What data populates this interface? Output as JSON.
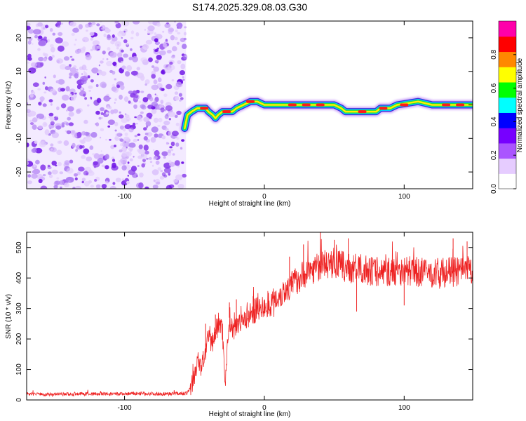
{
  "figure_title": "S174.2025.329.08.03.G30",
  "chart_data": [
    {
      "type": "heatmap",
      "name": "spectrogram",
      "xlabel": "Height of straight line (km)",
      "ylabel": "Frequency (Hz)",
      "xlim": [
        -170,
        149
      ],
      "ylim": [
        -25,
        25
      ],
      "xticks": [
        -100,
        0,
        100
      ],
      "yticks": [
        -20,
        -10,
        0,
        10,
        20
      ],
      "noise_region_x": [
        -170,
        -56
      ],
      "track": [
        {
          "x": -57,
          "y": -7
        },
        {
          "x": -55,
          "y": -3
        },
        {
          "x": -52,
          "y": -2
        },
        {
          "x": -48,
          "y": -1
        },
        {
          "x": -45,
          "y": -1
        },
        {
          "x": -42,
          "y": -1
        },
        {
          "x": -40,
          "y": -2
        },
        {
          "x": -37,
          "y": -3
        },
        {
          "x": -35,
          "y": -4
        },
        {
          "x": -33,
          "y": -3
        },
        {
          "x": -30,
          "y": -2
        },
        {
          "x": -27,
          "y": -2
        },
        {
          "x": -23,
          "y": -2
        },
        {
          "x": -20,
          "y": -1
        },
        {
          "x": -15,
          "y": 0
        },
        {
          "x": -10,
          "y": 1
        },
        {
          "x": -5,
          "y": 1
        },
        {
          "x": 0,
          "y": 0
        },
        {
          "x": 10,
          "y": 0
        },
        {
          "x": 20,
          "y": 0
        },
        {
          "x": 40,
          "y": 0
        },
        {
          "x": 50,
          "y": 0
        },
        {
          "x": 55,
          "y": -1
        },
        {
          "x": 58,
          "y": -2
        },
        {
          "x": 70,
          "y": -2
        },
        {
          "x": 80,
          "y": -2
        },
        {
          "x": 83,
          "y": -1
        },
        {
          "x": 90,
          "y": -1
        },
        {
          "x": 95,
          "y": 0
        },
        {
          "x": 110,
          "y": 1
        },
        {
          "x": 120,
          "y": 0
        },
        {
          "x": 140,
          "y": 0
        },
        {
          "x": 149,
          "y": 0
        }
      ],
      "hotspots": [
        {
          "x": -43,
          "y": -1
        },
        {
          "x": -27,
          "y": -2
        },
        {
          "x": -10,
          "y": 1
        },
        {
          "x": 20,
          "y": 0
        },
        {
          "x": 30,
          "y": 0
        },
        {
          "x": 40,
          "y": 0
        },
        {
          "x": 70,
          "y": -2
        },
        {
          "x": 85,
          "y": -1
        },
        {
          "x": 100,
          "y": 0
        },
        {
          "x": 130,
          "y": 0
        },
        {
          "x": 140,
          "y": 0
        }
      ],
      "colorbar": {
        "label": "Normalized spectral amplitude",
        "ticks": [
          "0.0",
          "0.2",
          "0.4",
          "0.6",
          "0.8"
        ],
        "range": [
          0,
          1
        ],
        "colors": [
          "#ffffff",
          "#e6ccff",
          "#aa55ff",
          "#7700ff",
          "#0000ff",
          "#00ffff",
          "#00ff00",
          "#ffff00",
          "#ff8800",
          "#ff0000",
          "#ff00aa"
        ]
      }
    },
    {
      "type": "line",
      "name": "snr",
      "xlabel": "Height of straight line (km)",
      "ylabel": "SNR (10 * v/v)",
      "xlim": [
        -170,
        149
      ],
      "ylim": [
        0,
        550
      ],
      "xticks": [
        -100,
        0,
        100
      ],
      "yticks": [
        0,
        100,
        200,
        300,
        400,
        500
      ],
      "color": "#ee2222",
      "series": [
        {
          "name": "SNR",
          "x": [
            -170,
            -150,
            -130,
            -110,
            -90,
            -70,
            -55,
            -51,
            -48,
            -45,
            -42,
            -40,
            -37,
            -35,
            -32,
            -30,
            -28,
            -25,
            -22,
            -20,
            -15,
            -10,
            -5,
            0,
            5,
            10,
            15,
            20,
            25,
            30,
            35,
            40,
            45,
            50,
            55,
            60,
            70,
            80,
            90,
            100,
            110,
            120,
            130,
            140,
            149
          ],
          "y": [
            20,
            18,
            20,
            19,
            21,
            20,
            22,
            60,
            120,
            110,
            160,
            200,
            190,
            220,
            260,
            230,
            60,
            270,
            220,
            260,
            260,
            280,
            300,
            300,
            320,
            340,
            360,
            380,
            400,
            420,
            430,
            440,
            445,
            450,
            440,
            430,
            430,
            420,
            420,
            425,
            420,
            415,
            420,
            420,
            425
          ]
        }
      ],
      "spikes": [
        {
          "x": -42,
          "y": 250
        },
        {
          "x": -35,
          "y": 280
        },
        {
          "x": -25,
          "y": 320
        },
        {
          "x": -20,
          "y": 330
        },
        {
          "x": -8,
          "y": 340
        },
        {
          "x": 18,
          "y": 470
        },
        {
          "x": 28,
          "y": 510
        },
        {
          "x": 40,
          "y": 550
        },
        {
          "x": 50,
          "y": 525
        },
        {
          "x": 60,
          "y": 530
        },
        {
          "x": 66,
          "y": 290
        },
        {
          "x": 100,
          "y": 310
        },
        {
          "x": 135,
          "y": 530
        },
        {
          "x": 145,
          "y": 520
        }
      ]
    }
  ]
}
